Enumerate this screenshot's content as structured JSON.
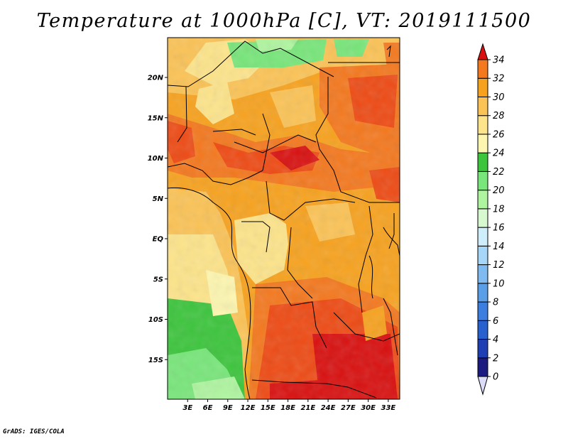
{
  "title": "Temperature at 1000hPa [C], VT: 2019111500",
  "credit": "GrADS: IGES/COLA",
  "map": {
    "lat_ticks": [
      {
        "lat": 20,
        "label": "20N"
      },
      {
        "lat": 15,
        "label": "15N"
      },
      {
        "lat": 10,
        "label": "10N"
      },
      {
        "lat": 5,
        "label": "5N"
      },
      {
        "lat": 0,
        "label": "EQ"
      },
      {
        "lat": -5,
        "label": "5S"
      },
      {
        "lat": -10,
        "label": "10S"
      },
      {
        "lat": -15,
        "label": "15S"
      }
    ],
    "lon_ticks": [
      {
        "lon": 3,
        "label": "3E"
      },
      {
        "lon": 6,
        "label": "6E"
      },
      {
        "lon": 9,
        "label": "9E"
      },
      {
        "lon": 12,
        "label": "12E"
      },
      {
        "lon": 15,
        "label": "15E"
      },
      {
        "lon": 18,
        "label": "18E"
      },
      {
        "lon": 21,
        "label": "21E"
      },
      {
        "lon": 24,
        "label": "24E"
      },
      {
        "lon": 27,
        "label": "27E"
      },
      {
        "lon": 30,
        "label": "30E"
      },
      {
        "lon": 33,
        "label": "33E"
      }
    ]
  },
  "colorbar": {
    "levels": [
      "0",
      "2",
      "4",
      "6",
      "8",
      "10",
      "12",
      "14",
      "16",
      "18",
      "20",
      "22",
      "24",
      "26",
      "28",
      "30",
      "32",
      "34"
    ],
    "colors": [
      "#1a1a80",
      "#1e3fb3",
      "#2860d0",
      "#3c7ee0",
      "#5a9ee8",
      "#7fbaf0",
      "#a6d6f8",
      "#cfeefb",
      "#d8f8d0",
      "#aff5a0",
      "#78e67a",
      "#3cc53c",
      "#fdf6b0",
      "#fde48a",
      "#fbc356",
      "#f7a21e",
      "#f4781e",
      "#ee4a14",
      "#d91010"
    ]
  }
}
